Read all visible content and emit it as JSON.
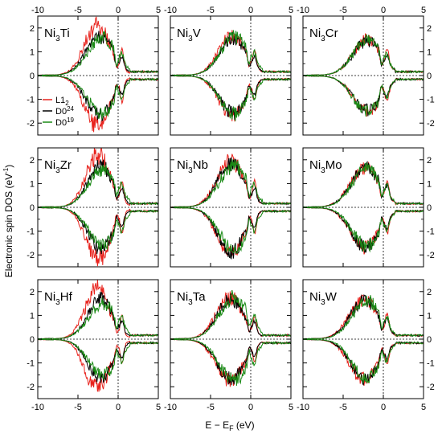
{
  "figure": {
    "ylabel_prefix": "Electronic spin DOS (eV",
    "ylabel_exp": "-1",
    "ylabel_suffix": ")",
    "xlabel_e": "E − E",
    "xlabel_sub": "F",
    "xlabel_unit": " (eV)"
  },
  "chart_data": [
    {
      "type": "line",
      "panel": "Ni3Ti",
      "base": "Ni",
      "sub": "3",
      "el": "Ti",
      "xlim": [
        -10,
        5
      ],
      "ylim": [
        -2.5,
        2.5
      ],
      "xticks": [
        -10,
        -5,
        0,
        5
      ],
      "yticks": [
        -2,
        -1,
        0,
        1,
        2
      ],
      "series": [
        {
          "name": "L1",
          "sub": "2",
          "color": "#e8221c",
          "peak": -2.6,
          "height": 2.3,
          "width": 1.6
        },
        {
          "name": "D0",
          "sub": "24",
          "color": "#000000",
          "peak": -2.3,
          "height": 1.8,
          "width": 1.7
        },
        {
          "name": "D0",
          "sub": "19",
          "color": "#1a8a16",
          "peak": -2.0,
          "height": 1.7,
          "width": 1.8
        }
      ]
    },
    {
      "type": "line",
      "panel": "Ni3V",
      "base": "Ni",
      "sub": "3",
      "el": "V",
      "xlim": [
        -10,
        5
      ],
      "ylim": [
        -2.5,
        2.5
      ],
      "xticks": [
        -10,
        -5,
        0,
        5
      ],
      "yticks": [
        -2,
        -1,
        0,
        1,
        2
      ],
      "series": [
        {
          "name": "L1",
          "sub": "2",
          "color": "#e8221c",
          "peak": -2.3,
          "height": 1.8,
          "width": 1.7
        },
        {
          "name": "D0",
          "sub": "24",
          "color": "#000000",
          "peak": -2.2,
          "height": 1.7,
          "width": 1.7
        },
        {
          "name": "D0",
          "sub": "19",
          "color": "#1a8a16",
          "peak": -2.0,
          "height": 1.75,
          "width": 1.8
        }
      ]
    },
    {
      "type": "line",
      "panel": "Ni3Cr",
      "base": "Ni",
      "sub": "3",
      "el": "Cr",
      "xlim": [
        -10,
        5
      ],
      "ylim": [
        -2.5,
        2.5
      ],
      "xticks": [
        -10,
        -5,
        0,
        5
      ],
      "yticks": [
        -2,
        -1,
        0,
        1,
        2
      ],
      "series": [
        {
          "name": "L1",
          "sub": "2",
          "color": "#e8221c",
          "peak": -2.0,
          "height": 1.6,
          "width": 1.8
        },
        {
          "name": "D0",
          "sub": "24",
          "color": "#000000",
          "peak": -2.0,
          "height": 1.55,
          "width": 1.8
        },
        {
          "name": "D0",
          "sub": "19",
          "color": "#1a8a16",
          "peak": -2.0,
          "height": 1.6,
          "width": 1.8
        }
      ]
    },
    {
      "type": "line",
      "panel": "Ni3Zr",
      "base": "Ni",
      "sub": "3",
      "el": "Zr",
      "xlim": [
        -10,
        5
      ],
      "ylim": [
        -2.5,
        2.5
      ],
      "xticks": [
        -10,
        -5,
        0,
        5
      ],
      "yticks": [
        -2,
        -1,
        0,
        1,
        2
      ],
      "series": [
        {
          "name": "L1",
          "sub": "2",
          "color": "#e8221c",
          "peak": -2.5,
          "height": 2.4,
          "width": 1.5
        },
        {
          "name": "D0",
          "sub": "24",
          "color": "#000000",
          "peak": -2.2,
          "height": 1.9,
          "width": 1.6
        },
        {
          "name": "D0",
          "sub": "19",
          "color": "#1a8a16",
          "peak": -1.9,
          "height": 1.7,
          "width": 1.8
        }
      ]
    },
    {
      "type": "line",
      "panel": "Ni3Nb",
      "base": "Ni",
      "sub": "3",
      "el": "Nb",
      "xlim": [
        -10,
        5
      ],
      "ylim": [
        -2.5,
        2.5
      ],
      "xticks": [
        -10,
        -5,
        0,
        5
      ],
      "yticks": [
        -2,
        -1,
        0,
        1,
        2
      ],
      "series": [
        {
          "name": "L1",
          "sub": "2",
          "color": "#e8221c",
          "peak": -2.5,
          "height": 2.1,
          "width": 1.7
        },
        {
          "name": "D0",
          "sub": "24",
          "color": "#000000",
          "peak": -2.4,
          "height": 2.0,
          "width": 1.7
        },
        {
          "name": "D0",
          "sub": "19",
          "color": "#1a8a16",
          "peak": -2.1,
          "height": 1.9,
          "width": 1.8
        }
      ]
    },
    {
      "type": "line",
      "panel": "Ni3Mo",
      "base": "Ni",
      "sub": "3",
      "el": "Mo",
      "xlim": [
        -10,
        5
      ],
      "ylim": [
        -2.5,
        2.5
      ],
      "xticks": [
        -10,
        -5,
        0,
        5
      ],
      "yticks": [
        -2,
        -1,
        0,
        1,
        2
      ],
      "series": [
        {
          "name": "L1",
          "sub": "2",
          "color": "#e8221c",
          "peak": -2.3,
          "height": 1.8,
          "width": 1.8
        },
        {
          "name": "D0",
          "sub": "24",
          "color": "#000000",
          "peak": -2.2,
          "height": 1.8,
          "width": 1.8
        },
        {
          "name": "D0",
          "sub": "19",
          "color": "#1a8a16",
          "peak": -2.1,
          "height": 1.75,
          "width": 1.8
        }
      ]
    },
    {
      "type": "line",
      "panel": "Ni3Hf",
      "base": "Ni",
      "sub": "3",
      "el": "Hf",
      "xlim": [
        -10,
        5
      ],
      "ylim": [
        -2.5,
        2.5
      ],
      "xticks": [
        -10,
        -5,
        0,
        5
      ],
      "yticks": [
        -2,
        -1,
        0,
        1,
        2
      ],
      "series": [
        {
          "name": "L1",
          "sub": "2",
          "color": "#e8221c",
          "peak": -2.6,
          "height": 2.3,
          "width": 1.5
        },
        {
          "name": "D0",
          "sub": "24",
          "color": "#000000",
          "peak": -2.2,
          "height": 1.8,
          "width": 1.6
        },
        {
          "name": "D0",
          "sub": "19",
          "color": "#1a8a16",
          "peak": -1.9,
          "height": 1.6,
          "width": 1.8
        }
      ]
    },
    {
      "type": "line",
      "panel": "Ni3Ta",
      "base": "Ni",
      "sub": "3",
      "el": "Ta",
      "xlim": [
        -10,
        5
      ],
      "ylim": [
        -2.5,
        2.5
      ],
      "xticks": [
        -10,
        -5,
        0,
        5
      ],
      "yticks": [
        -2,
        -1,
        0,
        1,
        2
      ],
      "series": [
        {
          "name": "L1",
          "sub": "2",
          "color": "#e8221c",
          "peak": -2.6,
          "height": 1.9,
          "width": 1.7
        },
        {
          "name": "D0",
          "sub": "24",
          "color": "#000000",
          "peak": -2.5,
          "height": 1.8,
          "width": 1.7
        },
        {
          "name": "D0",
          "sub": "19",
          "color": "#1a8a16",
          "peak": -2.1,
          "height": 1.9,
          "width": 1.8
        }
      ]
    },
    {
      "type": "line",
      "panel": "Ni3W",
      "base": "Ni",
      "sub": "3",
      "el": "W",
      "xlim": [
        -10,
        5
      ],
      "ylim": [
        -2.5,
        2.5
      ],
      "xticks": [
        -10,
        -5,
        0,
        5
      ],
      "yticks": [
        -2,
        -1,
        0,
        1,
        2
      ],
      "series": [
        {
          "name": "L1",
          "sub": "2",
          "color": "#e8221c",
          "peak": -2.4,
          "height": 1.8,
          "width": 1.8
        },
        {
          "name": "D0",
          "sub": "24",
          "color": "#000000",
          "peak": -2.3,
          "height": 1.75,
          "width": 1.8
        },
        {
          "name": "D0",
          "sub": "19",
          "color": "#1a8a16",
          "peak": -2.1,
          "height": 1.75,
          "width": 1.8
        }
      ]
    }
  ]
}
